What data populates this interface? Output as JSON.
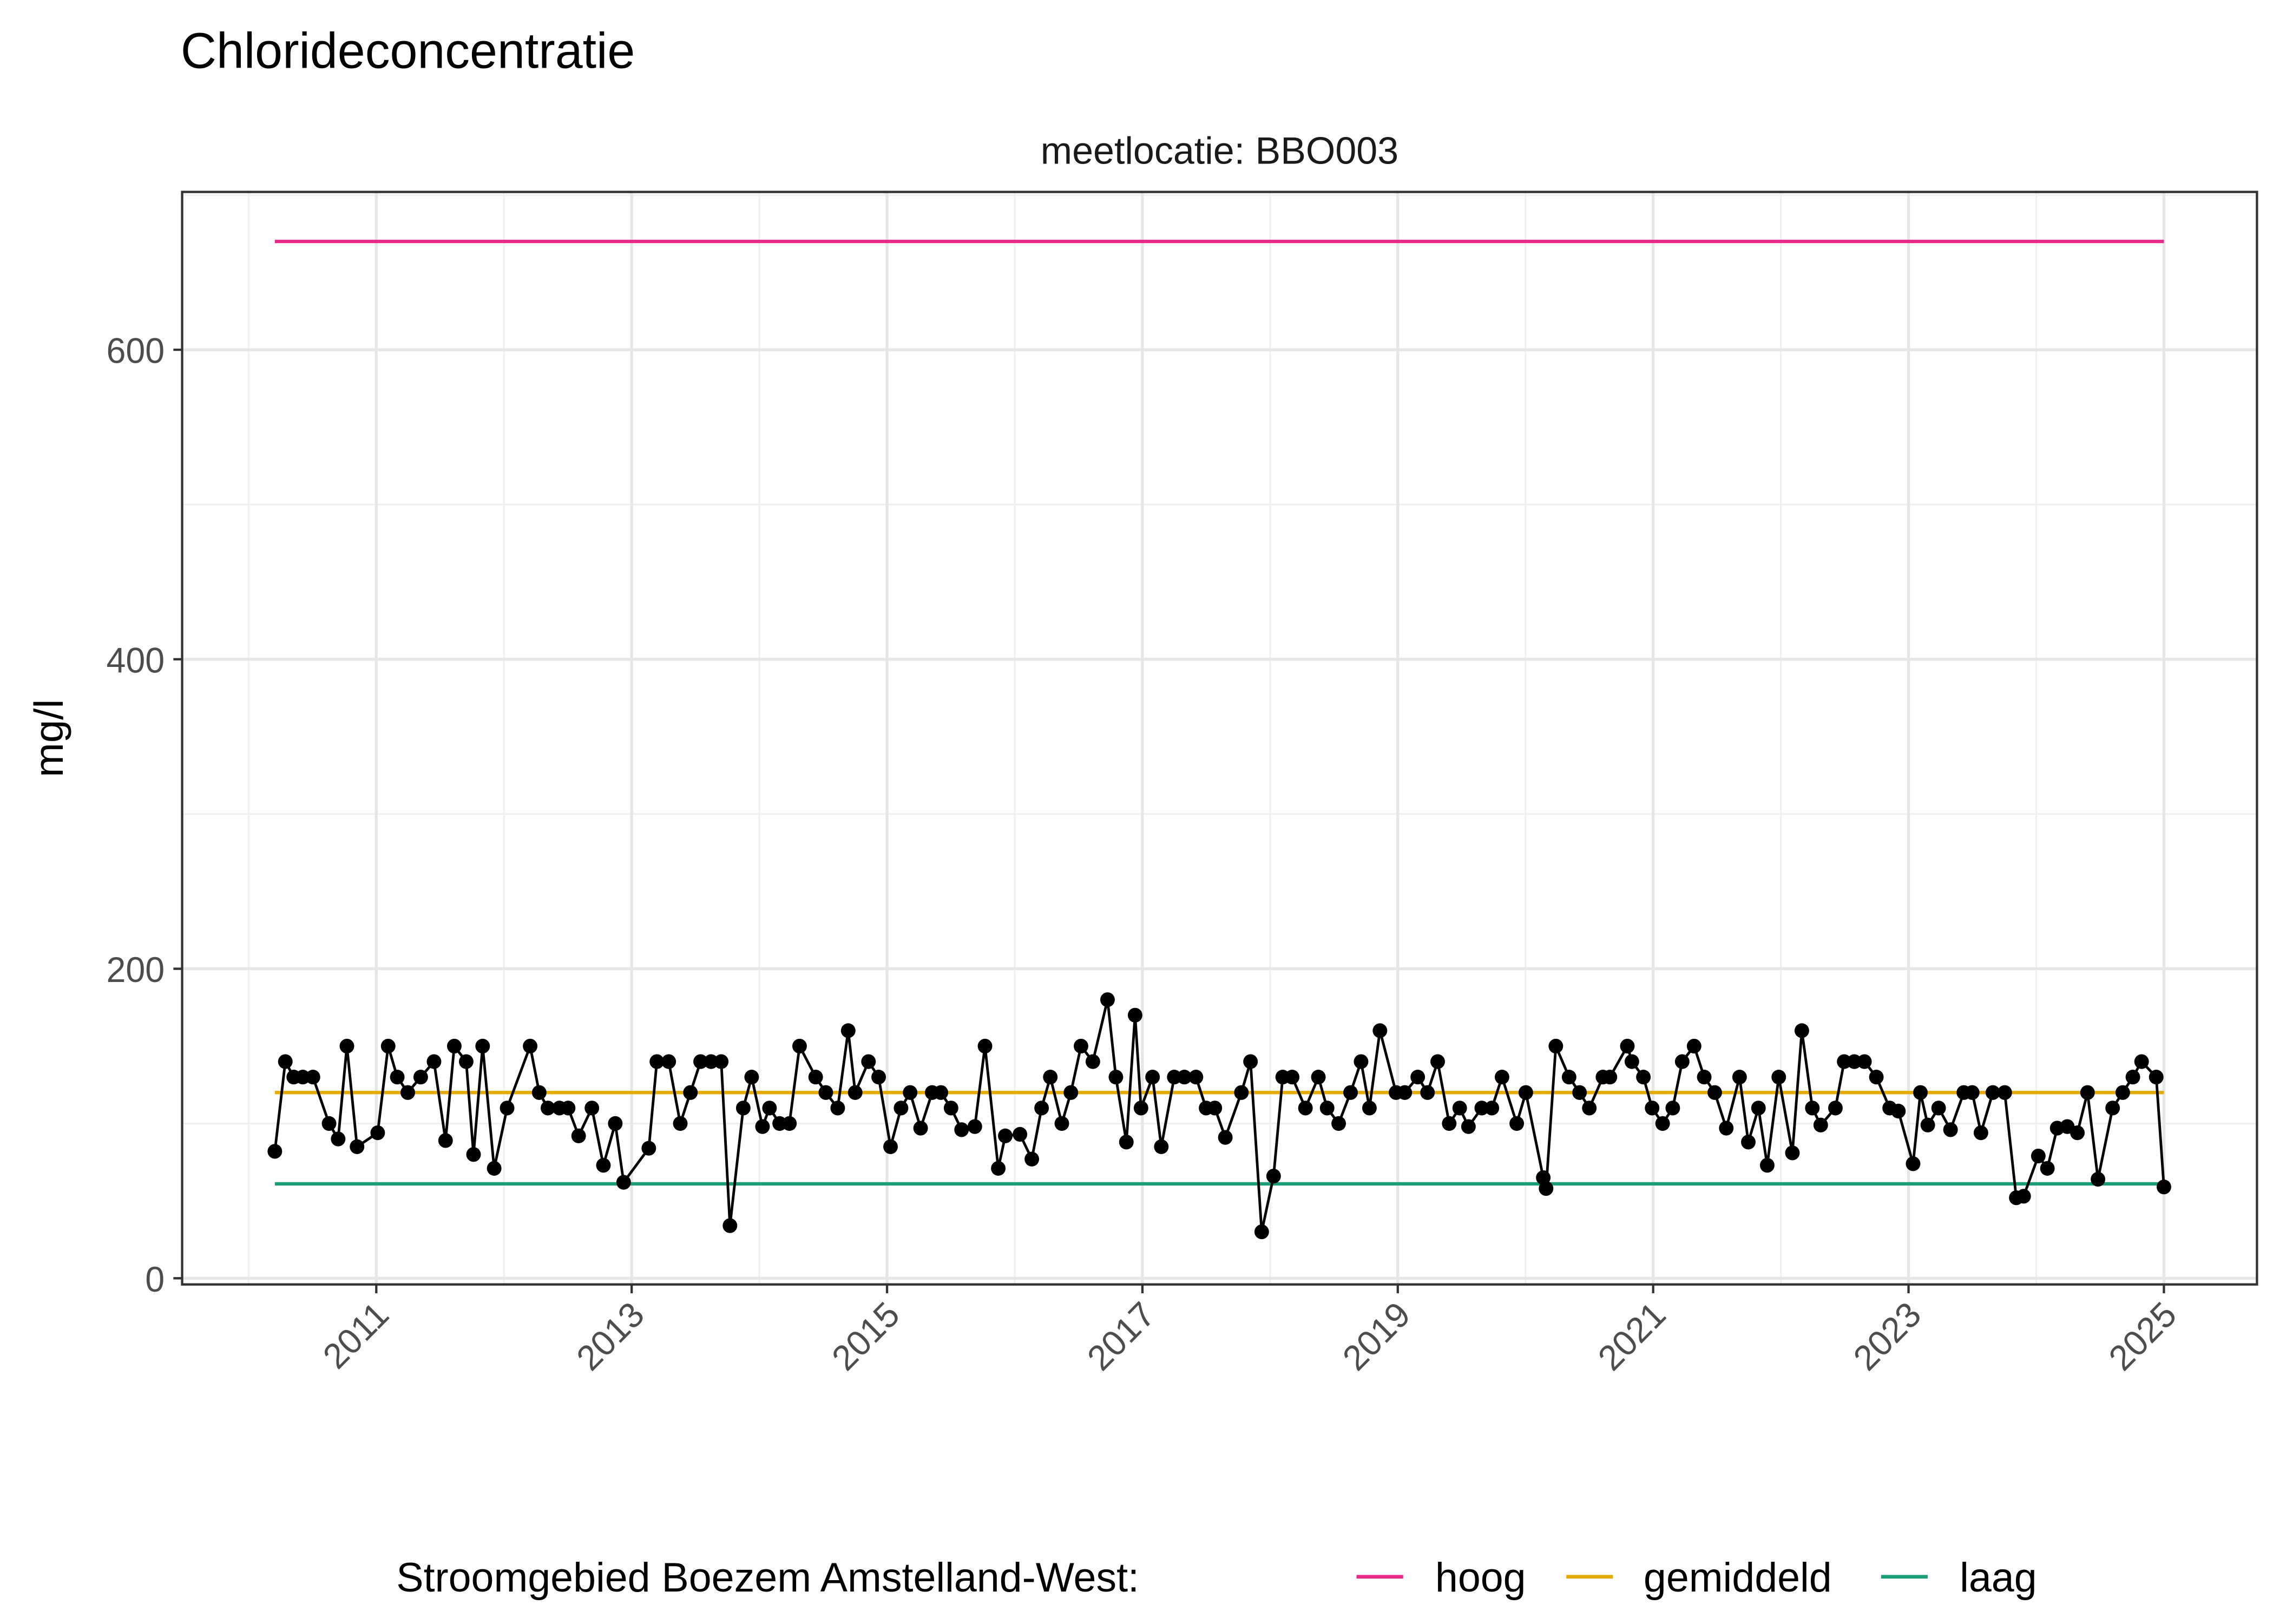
{
  "chart_data": {
    "type": "line",
    "title": "Chlorideconcentratie",
    "facet_label": "meetlocatie: BBO003",
    "xlabel": "",
    "ylabel": "mg/l",
    "xlim": [
      "2009-06-25",
      "2025-09-24"
    ],
    "ylim": [
      -4,
      702
    ],
    "x_ticks": [
      "2011",
      "2013",
      "2015",
      "2017",
      "2019",
      "2021",
      "2023",
      "2025"
    ],
    "y_ticks": [
      0,
      200,
      400,
      600
    ],
    "grid": true,
    "legend": {
      "position": "bottom",
      "title": "Stroomgebied Boezem Amstelland-West:",
      "entries": [
        {
          "label": "hoog",
          "color": "#E7298A"
        },
        {
          "label": "gemiddeld",
          "color": "#E6AB02"
        },
        {
          "label": "laag",
          "color": "#1B9E77"
        }
      ]
    },
    "reference_lines": [
      {
        "name": "hoog",
        "value": 670,
        "from": "2010-03-17",
        "to": "2025-01-01",
        "color": "#E7298A"
      },
      {
        "name": "gemiddeld",
        "value": 120,
        "from": "2010-03-17",
        "to": "2025-01-01",
        "color": "#E6AB02"
      },
      {
        "name": "laag",
        "value": 61,
        "from": "2010-03-17",
        "to": "2025-01-01",
        "color": "#1B9E77"
      }
    ],
    "series": [
      {
        "color": "#000000",
        "points": [
          [
            "2010-03-17",
            82
          ],
          [
            "2010-04-16",
            140
          ],
          [
            "2010-05-10",
            130
          ],
          [
            "2010-06-05",
            130
          ],
          [
            "2010-07-04",
            130
          ],
          [
            "2010-08-19",
            100
          ],
          [
            "2010-09-14",
            90
          ],
          [
            "2010-10-09",
            150
          ],
          [
            "2010-11-07",
            85
          ],
          [
            "2011-01-05",
            94
          ],
          [
            "2011-02-04",
            150
          ],
          [
            "2011-03-02",
            130
          ],
          [
            "2011-04-01",
            120
          ],
          [
            "2011-05-08",
            130
          ],
          [
            "2011-06-15",
            140
          ],
          [
            "2011-07-18",
            89
          ],
          [
            "2011-08-12",
            150
          ],
          [
            "2011-09-15",
            140
          ],
          [
            "2011-10-06",
            80
          ],
          [
            "2011-11-01",
            150
          ],
          [
            "2011-12-04",
            71
          ],
          [
            "2012-01-10",
            110
          ],
          [
            "2012-03-16",
            150
          ],
          [
            "2012-04-11",
            120
          ],
          [
            "2012-05-06",
            110
          ],
          [
            "2012-06-08",
            110
          ],
          [
            "2012-07-03",
            110
          ],
          [
            "2012-08-02",
            92
          ],
          [
            "2012-09-09",
            110
          ],
          [
            "2012-10-12",
            73
          ],
          [
            "2012-11-15",
            100
          ],
          [
            "2012-12-09",
            62
          ],
          [
            "2013-02-19",
            84
          ],
          [
            "2013-03-14",
            140
          ],
          [
            "2013-04-17",
            140
          ],
          [
            "2013-05-20",
            100
          ],
          [
            "2013-06-18",
            120
          ],
          [
            "2013-07-17",
            140
          ],
          [
            "2013-08-16",
            140
          ],
          [
            "2013-09-14",
            140
          ],
          [
            "2013-10-09",
            34
          ],
          [
            "2013-11-16",
            110
          ],
          [
            "2013-12-10",
            130
          ],
          [
            "2014-01-10",
            98
          ],
          [
            "2014-01-30",
            110
          ],
          [
            "2014-02-28",
            100
          ],
          [
            "2014-03-28",
            100
          ],
          [
            "2014-04-26",
            150
          ],
          [
            "2014-06-11",
            130
          ],
          [
            "2014-07-10",
            120
          ],
          [
            "2014-08-13",
            110
          ],
          [
            "2014-09-12",
            160
          ],
          [
            "2014-10-02",
            120
          ],
          [
            "2014-11-09",
            140
          ],
          [
            "2014-12-08",
            130
          ],
          [
            "2015-01-11",
            85
          ],
          [
            "2015-02-10",
            110
          ],
          [
            "2015-03-08",
            120
          ],
          [
            "2015-04-07",
            97
          ],
          [
            "2015-05-10",
            120
          ],
          [
            "2015-06-04",
            120
          ],
          [
            "2015-07-03",
            110
          ],
          [
            "2015-08-02",
            96
          ],
          [
            "2015-09-09",
            98
          ],
          [
            "2015-10-08",
            150
          ],
          [
            "2015-11-15",
            71
          ],
          [
            "2015-12-05",
            92
          ],
          [
            "2016-01-16",
            93
          ],
          [
            "2016-02-19",
            77
          ],
          [
            "2016-03-18",
            110
          ],
          [
            "2016-04-12",
            130
          ],
          [
            "2016-05-15",
            100
          ],
          [
            "2016-06-10",
            120
          ],
          [
            "2016-07-09",
            150
          ],
          [
            "2016-08-12",
            140
          ],
          [
            "2016-09-23",
            180
          ],
          [
            "2016-10-17",
            130
          ],
          [
            "2016-11-16",
            88
          ],
          [
            "2016-12-11",
            170
          ],
          [
            "2016-12-28",
            110
          ],
          [
            "2017-01-30",
            130
          ],
          [
            "2017-02-24",
            85
          ],
          [
            "2017-04-02",
            130
          ],
          [
            "2017-05-01",
            130
          ],
          [
            "2017-06-03",
            130
          ],
          [
            "2017-07-02",
            110
          ],
          [
            "2017-07-27",
            110
          ],
          [
            "2017-08-26",
            91
          ],
          [
            "2017-10-11",
            120
          ],
          [
            "2017-11-06",
            140
          ],
          [
            "2017-12-08",
            30
          ],
          [
            "2018-01-11",
            66
          ],
          [
            "2018-02-06",
            130
          ],
          [
            "2018-03-05",
            130
          ],
          [
            "2018-04-12",
            110
          ],
          [
            "2018-05-19",
            130
          ],
          [
            "2018-06-13",
            110
          ],
          [
            "2018-07-16",
            100
          ],
          [
            "2018-08-19",
            120
          ],
          [
            "2018-09-18",
            140
          ],
          [
            "2018-10-12",
            110
          ],
          [
            "2018-11-11",
            160
          ],
          [
            "2018-12-27",
            120
          ],
          [
            "2019-01-21",
            120
          ],
          [
            "2019-02-27",
            130
          ],
          [
            "2019-03-27",
            120
          ],
          [
            "2019-04-25",
            140
          ],
          [
            "2019-05-28",
            100
          ],
          [
            "2019-06-27",
            110
          ],
          [
            "2019-07-22",
            98
          ],
          [
            "2019-08-29",
            110
          ],
          [
            "2019-09-27",
            110
          ],
          [
            "2019-10-26",
            130
          ],
          [
            "2019-12-07",
            100
          ],
          [
            "2020-01-02",
            120
          ],
          [
            "2020-02-21",
            65
          ],
          [
            "2020-02-29",
            58
          ],
          [
            "2020-03-28",
            150
          ],
          [
            "2020-05-05",
            130
          ],
          [
            "2020-06-04",
            120
          ],
          [
            "2020-07-02",
            110
          ],
          [
            "2020-08-10",
            130
          ],
          [
            "2020-08-30",
            130
          ],
          [
            "2020-10-19",
            150
          ],
          [
            "2020-11-01",
            140
          ],
          [
            "2020-12-04",
            130
          ],
          [
            "2020-12-29",
            110
          ],
          [
            "2021-01-28",
            100
          ],
          [
            "2021-02-26",
            110
          ],
          [
            "2021-03-25",
            140
          ],
          [
            "2021-04-28",
            150
          ],
          [
            "2021-05-27",
            130
          ],
          [
            "2021-06-26",
            120
          ],
          [
            "2021-07-29",
            97
          ],
          [
            "2021-09-05",
            130
          ],
          [
            "2021-09-30",
            88
          ],
          [
            "2021-10-29",
            110
          ],
          [
            "2021-11-23",
            73
          ],
          [
            "2021-12-26",
            130
          ],
          [
            "2022-02-03",
            81
          ],
          [
            "2022-03-02",
            160
          ],
          [
            "2022-04-01",
            110
          ],
          [
            "2022-04-25",
            99
          ],
          [
            "2022-06-06",
            110
          ],
          [
            "2022-07-01",
            140
          ],
          [
            "2022-07-30",
            140
          ],
          [
            "2022-08-28",
            140
          ],
          [
            "2022-10-01",
            130
          ],
          [
            "2022-11-08",
            110
          ],
          [
            "2022-12-03",
            108
          ],
          [
            "2023-01-14",
            74
          ],
          [
            "2023-02-04",
            120
          ],
          [
            "2023-02-25",
            99
          ],
          [
            "2023-03-28",
            110
          ],
          [
            "2023-05-01",
            96
          ],
          [
            "2023-06-08",
            120
          ],
          [
            "2023-07-02",
            120
          ],
          [
            "2023-07-27",
            94
          ],
          [
            "2023-08-30",
            120
          ],
          [
            "2023-10-03",
            120
          ],
          [
            "2023-11-05",
            52
          ],
          [
            "2023-11-26",
            53
          ],
          [
            "2024-01-07",
            79
          ],
          [
            "2024-02-02",
            71
          ],
          [
            "2024-03-01",
            97
          ],
          [
            "2024-03-30",
            98
          ],
          [
            "2024-04-28",
            94
          ],
          [
            "2024-05-27",
            120
          ],
          [
            "2024-06-26",
            64
          ],
          [
            "2024-08-07",
            110
          ],
          [
            "2024-09-05",
            120
          ],
          [
            "2024-10-04",
            130
          ],
          [
            "2024-10-29",
            140
          ],
          [
            "2024-12-10",
            130
          ],
          [
            "2025-01-01",
            59
          ]
        ]
      }
    ]
  }
}
